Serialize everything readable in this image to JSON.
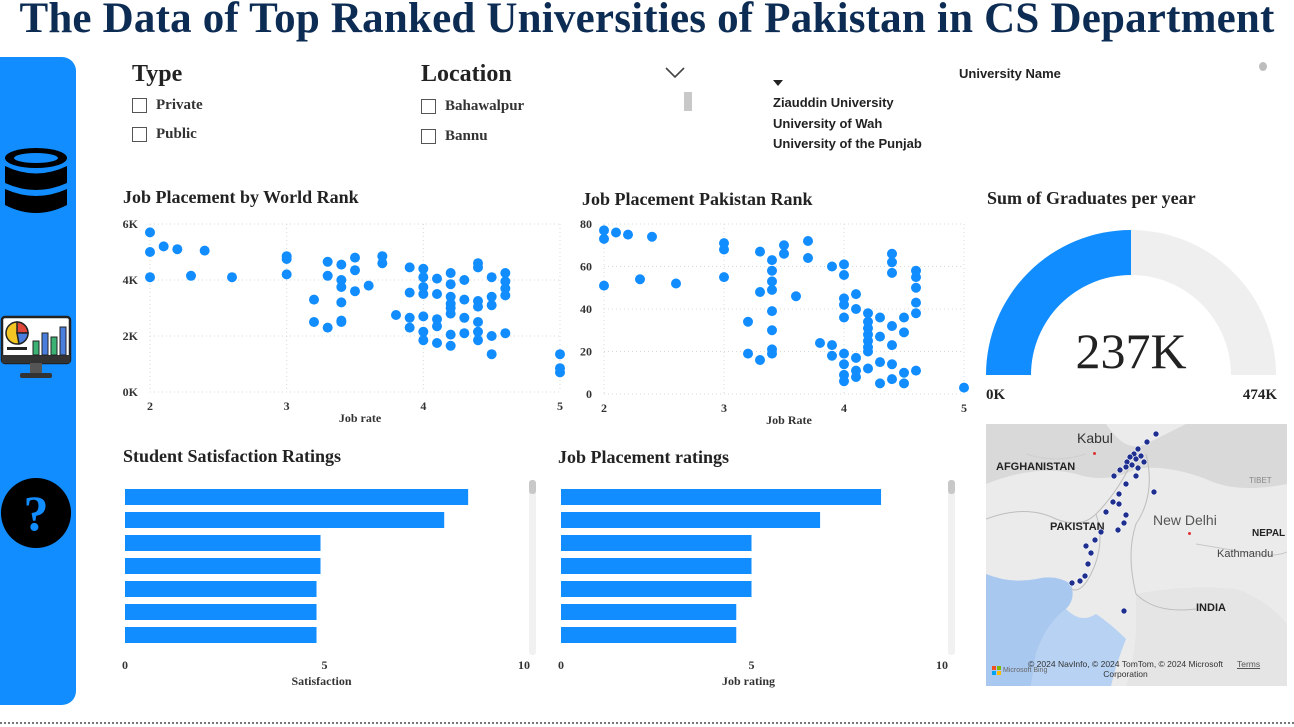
{
  "title": "The Data of Top Ranked Universities of Pakistan in CS Department",
  "colors": {
    "accent": "#118dff",
    "title": "#0d2c54",
    "gauge_track": "#efefef",
    "map_dot": "#1f2f8f"
  },
  "nav": {
    "icons": [
      "database-icon",
      "report-dashboard-icon",
      "help-icon"
    ],
    "help_glyph": "?"
  },
  "slicers": {
    "type": {
      "title": "Type",
      "items": [
        "Private",
        "Public"
      ]
    },
    "location": {
      "title": "Location",
      "items": [
        "Bahawalpur",
        "Bannu"
      ]
    },
    "university": {
      "title": "University Name",
      "items": [
        "Ziauddin University",
        "University of Wah",
        "University of the Punjab"
      ]
    }
  },
  "chart_data": [
    {
      "type": "scatter",
      "title": "Job Placement by World Rank",
      "xlabel": "Job rate",
      "xlim": [
        2,
        5
      ],
      "ylim": [
        0,
        6000
      ],
      "xticks": [
        2,
        3,
        4,
        5
      ],
      "yticks": [
        0,
        2000,
        4000,
        6000
      ],
      "ytick_labels": [
        "0K",
        "2K",
        "4K",
        "6K"
      ],
      "grid": true,
      "points": [
        [
          2.0,
          5700
        ],
        [
          2.0,
          5000
        ],
        [
          2.0,
          4100
        ],
        [
          2.1,
          5200
        ],
        [
          2.2,
          5100
        ],
        [
          2.3,
          4150
        ],
        [
          2.4,
          5050
        ],
        [
          2.6,
          4100
        ],
        [
          3.0,
          4850
        ],
        [
          3.0,
          4750
        ],
        [
          3.0,
          4200
        ],
        [
          3.2,
          3300
        ],
        [
          3.2,
          2500
        ],
        [
          3.3,
          4650
        ],
        [
          3.3,
          4150
        ],
        [
          3.3,
          2300
        ],
        [
          3.4,
          4550
        ],
        [
          3.4,
          4000
        ],
        [
          3.4,
          3750
        ],
        [
          3.4,
          3200
        ],
        [
          3.4,
          2550
        ],
        [
          3.4,
          2500
        ],
        [
          3.5,
          4800
        ],
        [
          3.5,
          4350
        ],
        [
          3.5,
          3600
        ],
        [
          3.6,
          3800
        ],
        [
          3.7,
          4850
        ],
        [
          3.7,
          4600
        ],
        [
          3.8,
          2750
        ],
        [
          3.9,
          2650
        ],
        [
          3.9,
          2300
        ],
        [
          3.9,
          3550
        ],
        [
          3.9,
          4450
        ],
        [
          4.0,
          4400
        ],
        [
          4.0,
          4100
        ],
        [
          4.0,
          3750
        ],
        [
          4.0,
          3500
        ],
        [
          4.0,
          2700
        ],
        [
          4.0,
          2150
        ],
        [
          4.0,
          1850
        ],
        [
          4.1,
          4050
        ],
        [
          4.1,
          3500
        ],
        [
          4.1,
          2600
        ],
        [
          4.1,
          2350
        ],
        [
          4.1,
          1750
        ],
        [
          4.2,
          4250
        ],
        [
          4.2,
          3850
        ],
        [
          4.2,
          3400
        ],
        [
          4.2,
          3150
        ],
        [
          4.2,
          3000
        ],
        [
          4.2,
          2800
        ],
        [
          4.2,
          2050
        ],
        [
          4.2,
          1650
        ],
        [
          4.3,
          4000
        ],
        [
          4.3,
          3300
        ],
        [
          4.3,
          2650
        ],
        [
          4.3,
          2100
        ],
        [
          4.4,
          4600
        ],
        [
          4.4,
          4450
        ],
        [
          4.4,
          3250
        ],
        [
          4.4,
          3050
        ],
        [
          4.4,
          2500
        ],
        [
          4.4,
          2150
        ],
        [
          4.4,
          1850
        ],
        [
          4.5,
          4100
        ],
        [
          4.5,
          3400
        ],
        [
          4.5,
          3100
        ],
        [
          4.5,
          2000
        ],
        [
          4.5,
          1350
        ],
        [
          4.6,
          4250
        ],
        [
          4.6,
          3950
        ],
        [
          4.6,
          3700
        ],
        [
          4.6,
          3450
        ],
        [
          4.6,
          2100
        ],
        [
          5.0,
          1350
        ],
        [
          5.0,
          850
        ],
        [
          5.0,
          700
        ]
      ]
    },
    {
      "type": "scatter",
      "title": "Job Placement Pakistan Rank",
      "xlabel": "Job Rate",
      "xlim": [
        2,
        5
      ],
      "ylim": [
        0,
        80
      ],
      "xticks": [
        2,
        3,
        4,
        5
      ],
      "yticks": [
        0,
        20,
        40,
        60,
        80
      ],
      "grid": true,
      "points": [
        [
          2.0,
          77
        ],
        [
          2.0,
          73
        ],
        [
          2.0,
          51
        ],
        [
          2.1,
          76
        ],
        [
          2.2,
          75
        ],
        [
          2.3,
          54
        ],
        [
          2.4,
          74
        ],
        [
          2.6,
          52
        ],
        [
          3.0,
          71
        ],
        [
          3.0,
          68
        ],
        [
          3.0,
          55
        ],
        [
          3.2,
          34
        ],
        [
          3.2,
          19
        ],
        [
          3.3,
          67
        ],
        [
          3.3,
          48
        ],
        [
          3.3,
          16
        ],
        [
          3.4,
          63
        ],
        [
          3.4,
          58
        ],
        [
          3.4,
          53
        ],
        [
          3.4,
          49
        ],
        [
          3.4,
          39
        ],
        [
          3.4,
          30
        ],
        [
          3.4,
          21
        ],
        [
          3.4,
          19
        ],
        [
          3.5,
          66
        ],
        [
          3.5,
          70
        ],
        [
          3.6,
          46
        ],
        [
          3.7,
          72
        ],
        [
          3.7,
          64
        ],
        [
          3.8,
          24
        ],
        [
          3.9,
          60
        ],
        [
          3.9,
          23
        ],
        [
          3.9,
          18
        ],
        [
          4.0,
          61
        ],
        [
          4.0,
          56
        ],
        [
          4.0,
          45
        ],
        [
          4.0,
          42
        ],
        [
          4.0,
          36
        ],
        [
          4.0,
          19
        ],
        [
          4.0,
          14
        ],
        [
          4.0,
          9
        ],
        [
          4.0,
          6
        ],
        [
          4.1,
          47
        ],
        [
          4.1,
          40
        ],
        [
          4.1,
          17
        ],
        [
          4.1,
          11
        ],
        [
          4.1,
          8
        ],
        [
          4.2,
          38
        ],
        [
          4.2,
          34
        ],
        [
          4.2,
          31
        ],
        [
          4.2,
          28
        ],
        [
          4.2,
          25
        ],
        [
          4.2,
          22
        ],
        [
          4.2,
          20
        ],
        [
          4.2,
          12
        ],
        [
          4.3,
          36
        ],
        [
          4.3,
          27
        ],
        [
          4.3,
          15
        ],
        [
          4.3,
          5
        ],
        [
          4.4,
          66
        ],
        [
          4.4,
          62
        ],
        [
          4.4,
          57
        ],
        [
          4.4,
          32
        ],
        [
          4.4,
          23
        ],
        [
          4.4,
          14
        ],
        [
          4.4,
          7
        ],
        [
          4.5,
          36
        ],
        [
          4.5,
          29
        ],
        [
          4.5,
          10
        ],
        [
          4.5,
          5
        ],
        [
          4.6,
          58
        ],
        [
          4.6,
          55
        ],
        [
          4.6,
          50
        ],
        [
          4.6,
          43
        ],
        [
          4.6,
          38
        ],
        [
          4.6,
          11
        ],
        [
          5.0,
          3
        ]
      ]
    },
    {
      "type": "gauge",
      "title": "Sum of Graduates per year",
      "value_label": "237K",
      "value": 237000,
      "min": 0,
      "max": 474000,
      "min_label": "0K",
      "max_label": "474K"
    },
    {
      "type": "bar",
      "orientation": "horizontal",
      "title": "Student Satisfaction Ratings",
      "xlabel": "Satisfaction",
      "xlim": [
        0,
        10
      ],
      "xticks": [
        0,
        5,
        10
      ],
      "values": [
        8.6,
        8.0,
        4.9,
        4.9,
        4.8,
        4.8,
        4.8
      ]
    },
    {
      "type": "bar",
      "orientation": "horizontal",
      "title": "Job Placement ratings",
      "xlabel": "Job rating",
      "xlim": [
        0,
        10
      ],
      "xticks": [
        0,
        5,
        10
      ],
      "values": [
        8.4,
        6.8,
        5.0,
        5.0,
        5.0,
        4.6,
        4.6
      ]
    }
  ],
  "map": {
    "country_labels": [
      "AFGHANISTAN",
      "PAKISTAN",
      "INDIA",
      "NEPAL",
      "TIBET"
    ],
    "city_labels": [
      "Kabul",
      "New Delhi",
      "Kathmandu"
    ],
    "credit": "© 2024 NavInfo, © 2024 TomTom, © 2024 Microsoft Corporation",
    "terms": "Terms",
    "logo": "Microsoft Bing"
  }
}
